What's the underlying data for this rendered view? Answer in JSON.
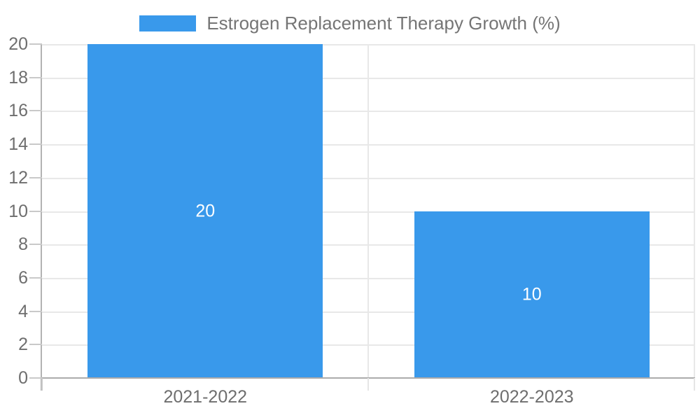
{
  "chart_data": {
    "type": "bar",
    "title": "",
    "xlabel": "",
    "ylabel": "",
    "categories": [
      "2021-2022",
      "2022-2023"
    ],
    "series": [
      {
        "name": "Estrogen Replacement Therapy Growth (%)",
        "values": [
          20,
          10
        ]
      }
    ],
    "data_labels": [
      "20",
      "10"
    ],
    "ylim": [
      0,
      20
    ],
    "yticks": [
      0,
      2,
      4,
      6,
      8,
      10,
      12,
      14,
      16,
      18,
      20
    ],
    "grid": true,
    "legend_position": "top-center",
    "bar_width_fraction": 0.72
  },
  "colors": {
    "bar": "#3999EB",
    "grid": "#e8e8e8",
    "axis_x": "#ababab",
    "axis_y": "#b3b3b3",
    "tick_mark": "#c9c9c9",
    "below_tick_left": "#c9c9c9",
    "below_tick_light": "#e5e5e5",
    "legend_text": "#757575",
    "tick_text": "#6e6e6e",
    "data_label_text": "#ffffff"
  }
}
